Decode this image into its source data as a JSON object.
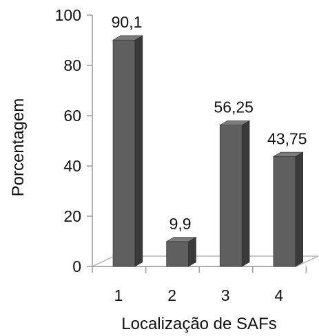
{
  "chart_data": {
    "type": "bar",
    "categories": [
      "1",
      "2",
      "3",
      "4"
    ],
    "values": [
      90.1,
      9.9,
      56.25,
      43.75
    ],
    "data_labels": [
      "90,1",
      "9,9",
      "56,25",
      "43,75"
    ],
    "title": "",
    "xlabel": "Localização de SAFs",
    "ylabel": "Porcentagem",
    "ylim": [
      0,
      100
    ],
    "yticks": [
      0,
      20,
      40,
      60,
      80,
      100
    ],
    "ytick_labels": [
      "0",
      "20",
      "40",
      "60",
      "80",
      "100"
    ],
    "grid": false,
    "legend": "none",
    "style": "3d-column",
    "colors": {
      "bar_front": "#5f5f5f",
      "bar_side": "#3a3a3a",
      "bar_top": "#7c7c7c",
      "axis": "#9a9a9a",
      "floor_line": "#a8a8a8"
    }
  }
}
